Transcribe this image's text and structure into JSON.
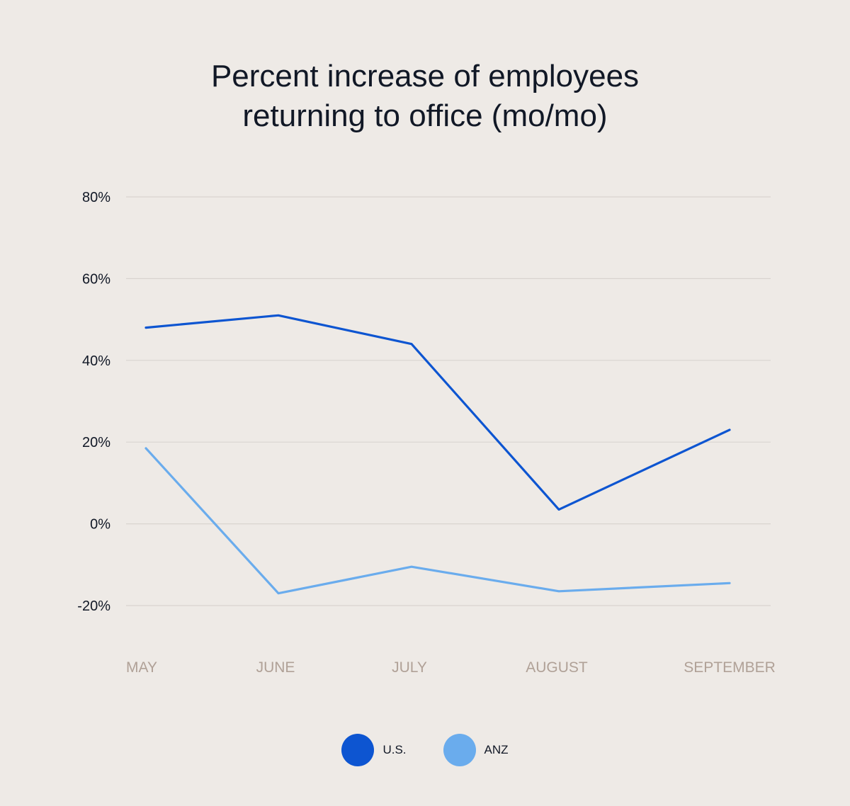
{
  "chart_data": {
    "type": "line",
    "title_lines": [
      "Percent increase of employees",
      "returning to office (mo/mo)"
    ],
    "categories": [
      "MAY",
      "JUNE",
      "JULY",
      "AUGUST",
      "SEPTEMBER"
    ],
    "yticks": [
      "80%",
      "60%",
      "40%",
      "20%",
      "0%",
      "-20%"
    ],
    "ytick_values": [
      80,
      60,
      40,
      20,
      0,
      -20
    ],
    "ylim": [
      -20,
      80
    ],
    "grid": true,
    "legend_position": "bottom-center",
    "series": [
      {
        "name": "U.S.",
        "color": "#0d55d1",
        "values": [
          48,
          51,
          44,
          3.5,
          23
        ]
      },
      {
        "name": "ANZ",
        "color": "#6aaced",
        "values": [
          18.5,
          -17,
          -10.5,
          -16.5,
          -14.5
        ]
      }
    ]
  }
}
